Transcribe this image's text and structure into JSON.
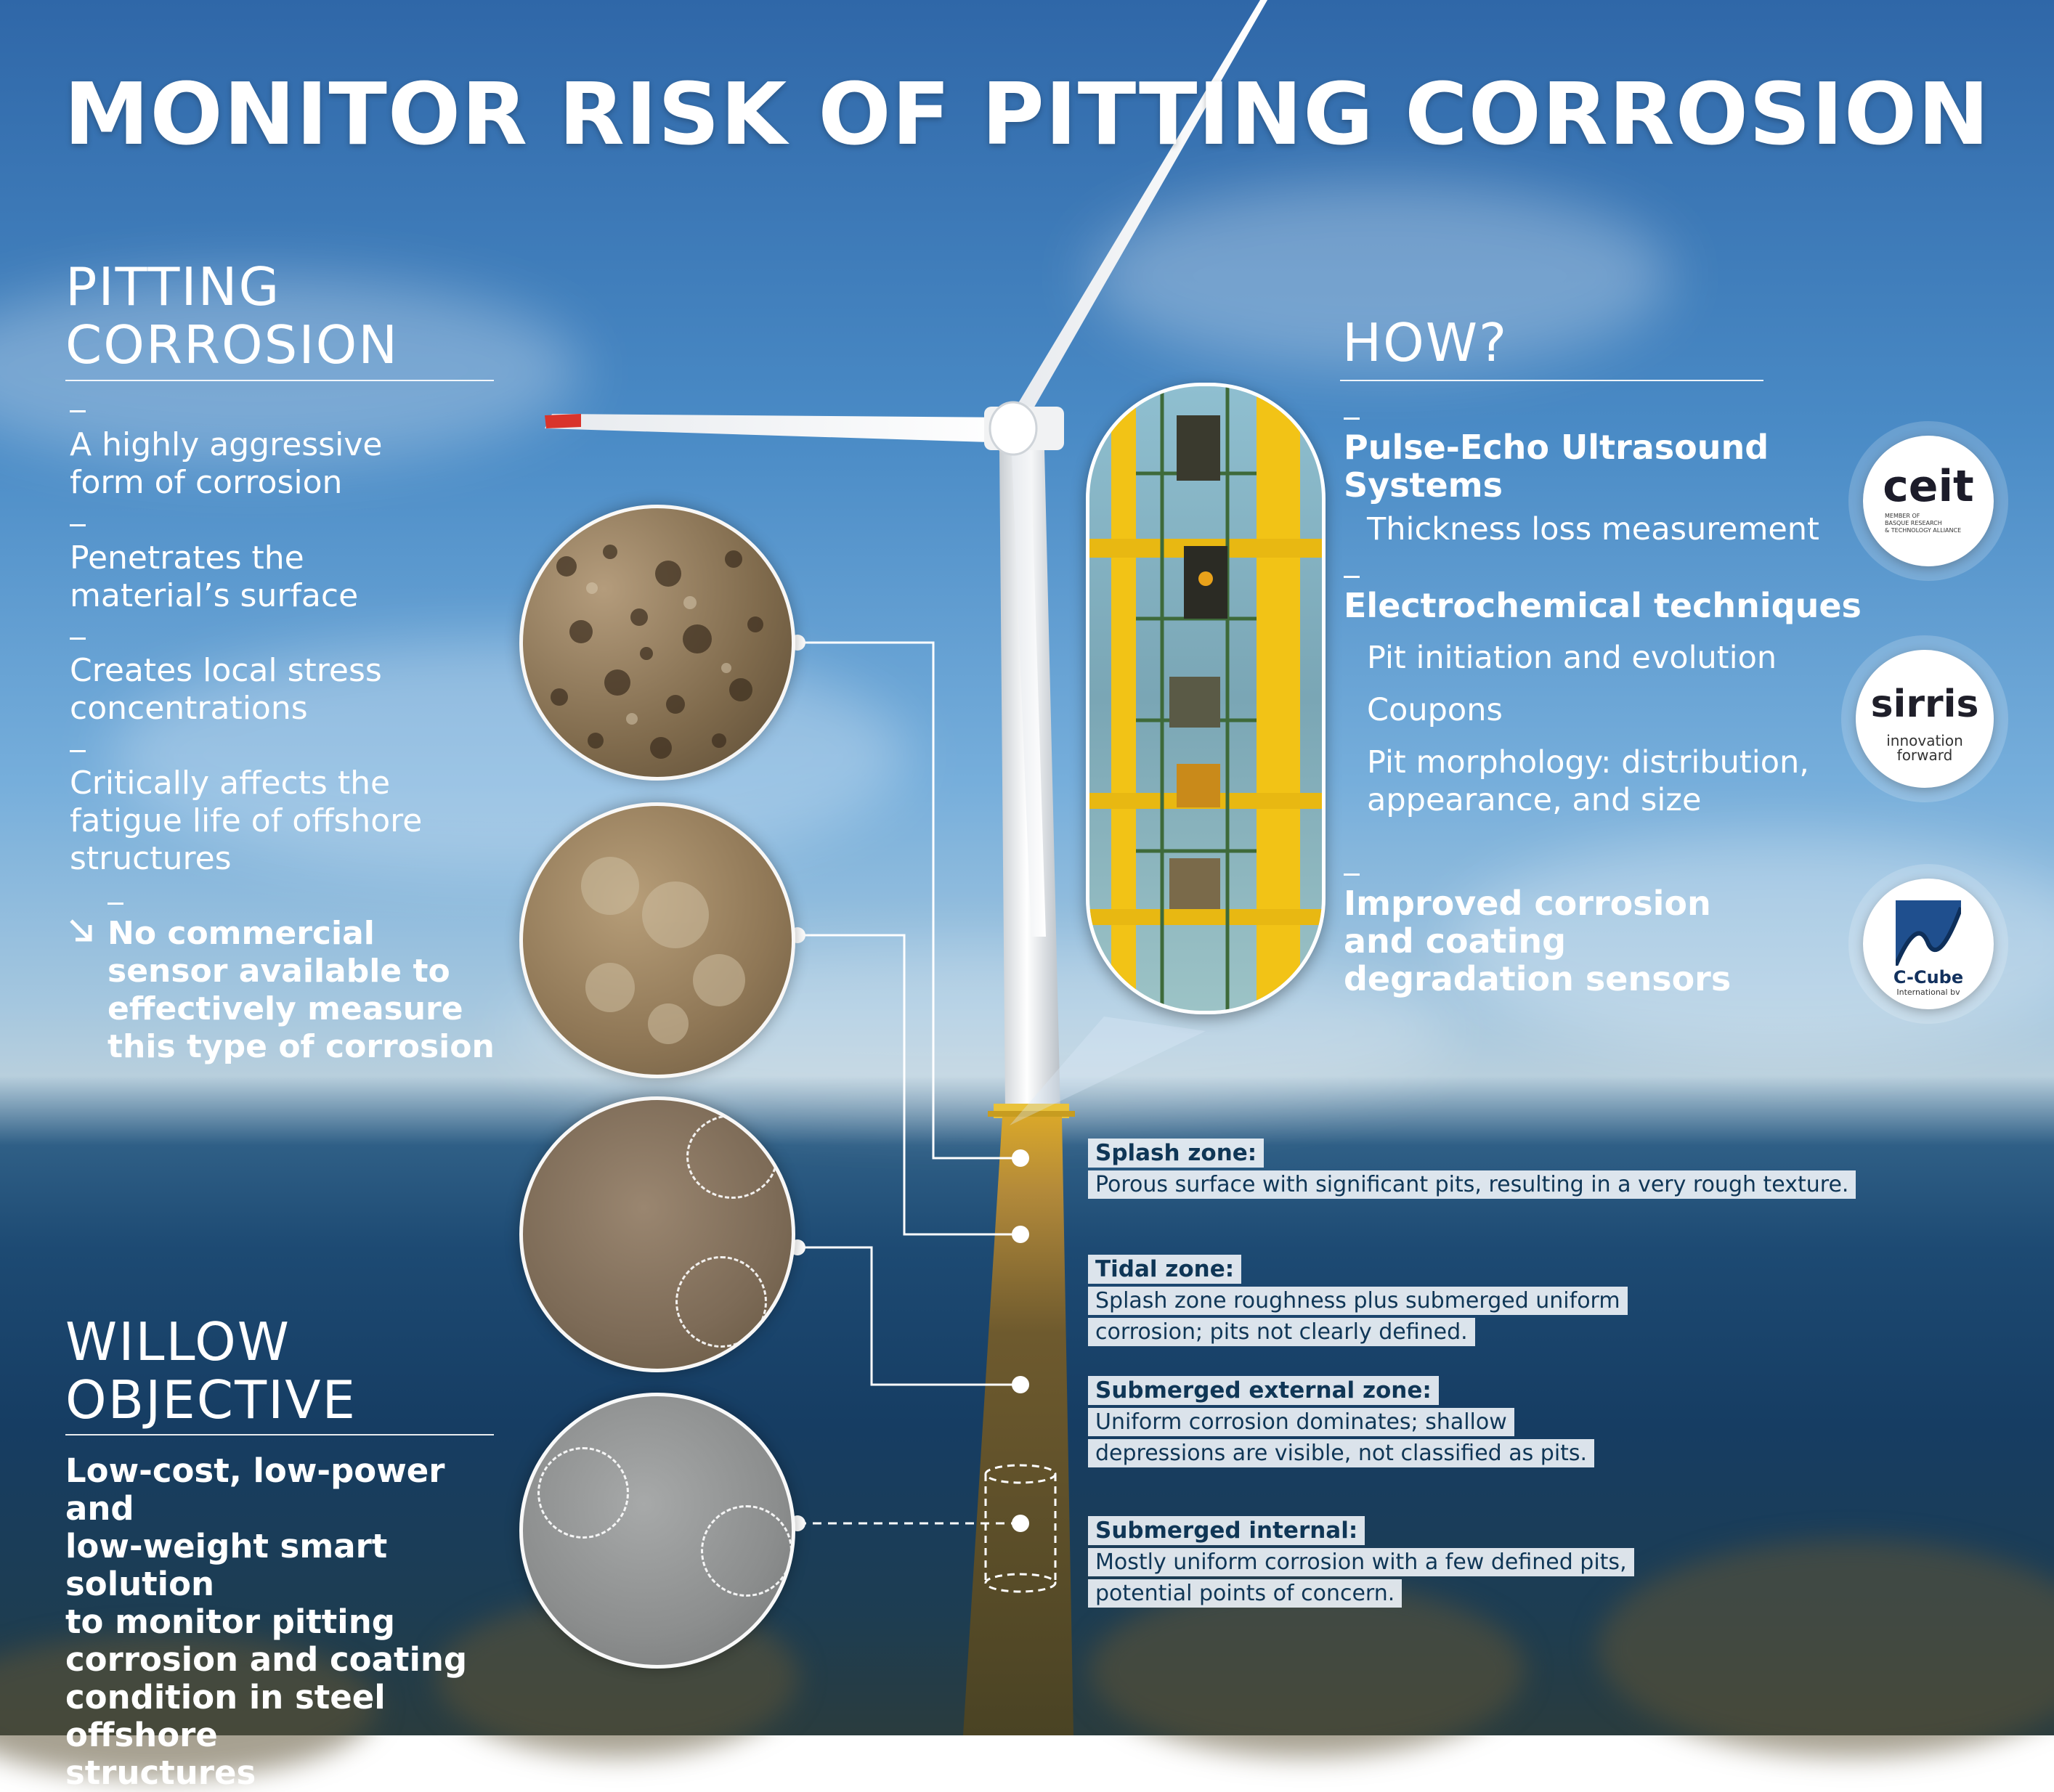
{
  "title": "MONITOR RISK OF PITTING CORROSION",
  "pitting": {
    "heading_line1": "PITTING",
    "heading_line2": "CORROSION",
    "items": [
      {
        "line1": "A highly aggressive",
        "line2": "form of corrosion"
      },
      {
        "line1": "Penetrates the",
        "line2": "material’s surface"
      },
      {
        "line1": "Creates local stress",
        "line2": "concentrations"
      },
      {
        "line1": "Critically affects the",
        "line2": "fatigue life of offshore",
        "line3": "structures"
      }
    ],
    "highlight": {
      "icon": "arrow-down-right-icon",
      "line1": "No commercial",
      "line2": "sensor available to",
      "line3": "effectively  measure",
      "line4": "this type of corrosion"
    }
  },
  "objective": {
    "heading_line1": "WILLOW",
    "heading_line2": "OBJECTIVE",
    "lines": [
      "Low-cost, low-power and",
      "low-weight smart solution",
      "to monitor pitting",
      "corrosion and coating",
      "condition in steel offshore",
      "structures"
    ]
  },
  "how": {
    "heading": "HOW?",
    "ultrasound_title_line1": "Pulse-Echo Ultrasound",
    "ultrasound_title_line2": "Systems",
    "ultrasound_item": "Thickness loss measurement",
    "electro_title": "Electrochemical  techniques",
    "electro_items": [
      "Pit initiation and evolution",
      "Coupons",
      "Pit morphology: distribution,",
      "appearance, and size"
    ],
    "sensors_title_line1": "Improved corrosion",
    "sensors_title_line2": "and coating",
    "sensors_title_line3": "degradation sensors"
  },
  "logos": {
    "ceit": {
      "name": "ceit",
      "sub1": "MEMBER OF",
      "sub2": "BASQUE RESEARCH",
      "sub3": "& TECHNOLOGY ALLIANCE",
      "color": "#9b1b4f"
    },
    "sirris": {
      "name": "sirris",
      "sub1": "innovation",
      "sub2": "forward",
      "color": "#5b2a86"
    },
    "ccube": {
      "name": "C-Cube",
      "sub": "International bv",
      "color": "#1f4f8e"
    }
  },
  "zones": {
    "splash": {
      "title": "Splash zone:",
      "lines": [
        "Porous surface with significant pits, resulting in a very rough texture."
      ]
    },
    "tidal": {
      "title": "Tidal zone:",
      "lines": [
        "Splash zone roughness plus submerged uniform",
        "corrosion; pits not clearly defined."
      ]
    },
    "submerged_ext": {
      "title": "Submerged external zone:",
      "lines": [
        "Uniform corrosion dominates; shallow",
        "depressions are visible, not classified as pits."
      ]
    },
    "submerged_int": {
      "title": "Submerged internal:",
      "lines": [
        "Mostly uniform corrosion with a few defined pits,",
        "potential points of concern."
      ]
    }
  },
  "colors": {
    "blade_tip": "#d9342b",
    "tower": "#f1f2f3",
    "frame_yellow": "#f2c316",
    "zone_text": "#0f3656"
  }
}
